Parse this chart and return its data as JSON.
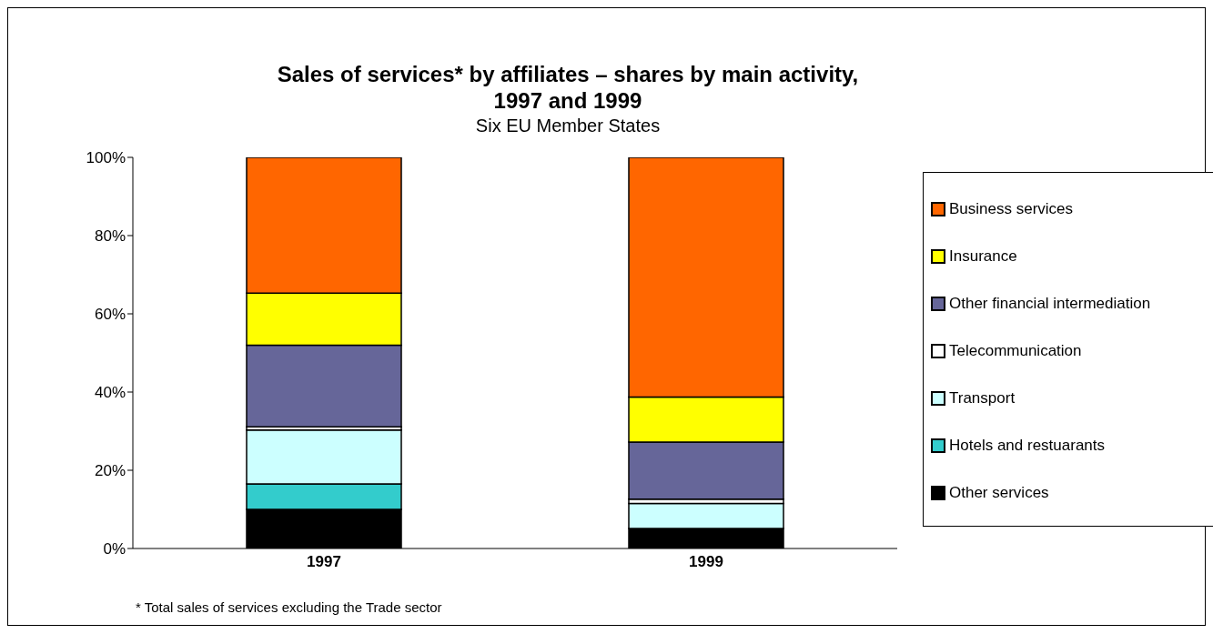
{
  "chart_data": {
    "type": "bar",
    "title": "Sales of services* by affiliates – shares by main activity, 1997 and 1999",
    "subtitle": "Six EU Member States",
    "categories": [
      "1997",
      "1999"
    ],
    "stacked": true,
    "ylim": [
      0,
      100
    ],
    "yticks": [
      {
        "value": 0,
        "label": "0%"
      },
      {
        "value": 20,
        "label": "20%"
      },
      {
        "value": 40,
        "label": "40%"
      },
      {
        "value": 60,
        "label": "60%"
      },
      {
        "value": 80,
        "label": "80%"
      },
      {
        "value": 100,
        "label": "100%"
      }
    ],
    "grid": false,
    "legend": "right",
    "annotations": [
      "* Total sales of services excluding the Trade sector"
    ],
    "series": [
      {
        "name": "Other services",
        "color": "#000000",
        "values": [
          10.0,
          5.1
        ]
      },
      {
        "name": "Hotels and restuarants",
        "color": "#33cccc",
        "values": [
          6.5,
          0
        ]
      },
      {
        "name": "Transport",
        "color": "#ccffff",
        "values": [
          13.8,
          6.4
        ]
      },
      {
        "name": "Telecommunication",
        "color": "#ffffff",
        "values": [
          0.8,
          1.1
        ]
      },
      {
        "name": "Other financial intermediation",
        "color": "#666699",
        "values": [
          20.9,
          14.6
        ]
      },
      {
        "name": "Insurance",
        "color": "#ffff00",
        "values": [
          13.3,
          11.5
        ]
      },
      {
        "name": "Business services",
        "color": "#ff6600",
        "values": [
          34.7,
          61.3
        ]
      }
    ]
  }
}
